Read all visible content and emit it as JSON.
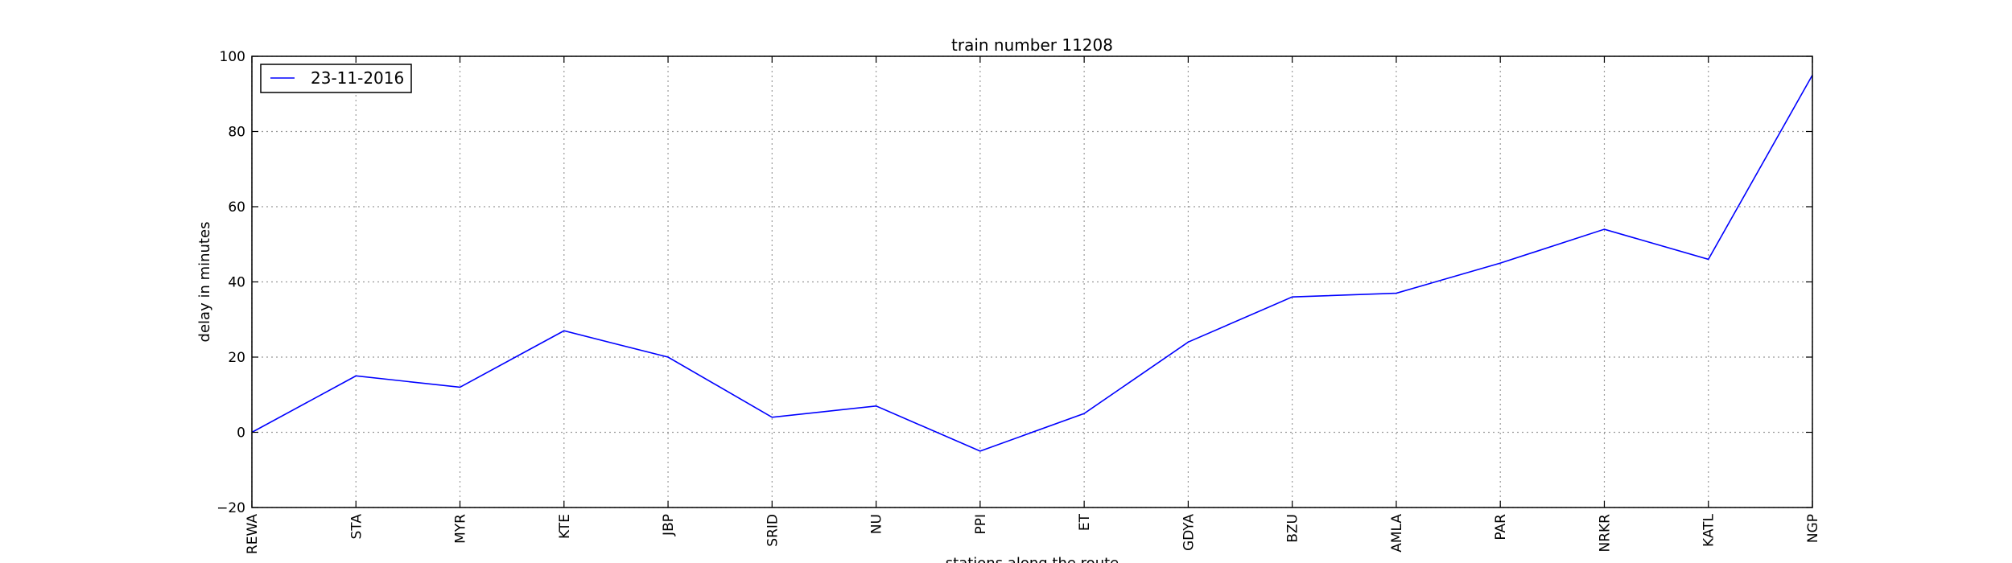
{
  "chart_data": {
    "type": "line",
    "title": "train number 11208",
    "xlabel": "stations along the route",
    "ylabel": "delay in minutes",
    "ylim": [
      -20,
      100
    ],
    "yticks": [
      -20,
      0,
      20,
      40,
      60,
      80,
      100
    ],
    "grid": true,
    "legend_position": "top-left",
    "categories": [
      "REWA",
      "STA",
      "MYR",
      "KTE",
      "JBP",
      "SRID",
      "NU",
      "PPI",
      "ET",
      "GDYA",
      "BZU",
      "AMLA",
      "PAR",
      "NRKR",
      "KATL",
      "NGP"
    ],
    "series": [
      {
        "name": "23-11-2016",
        "color": "#0000ff",
        "values": [
          0,
          15,
          12,
          27,
          20,
          4,
          7,
          -5,
          5,
          24,
          36,
          37,
          45,
          54,
          46,
          95
        ]
      }
    ]
  }
}
